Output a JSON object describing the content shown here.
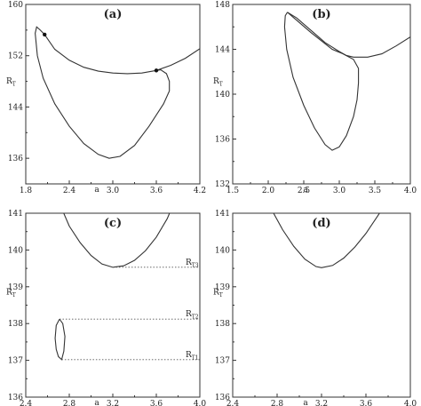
{
  "chart_data": [
    {
      "id": "a",
      "type": "line",
      "panel_label": "(a)",
      "xlabel": "a",
      "ylabel": "R",
      "ylabel_sub": "T",
      "xlim": [
        1.8,
        4.2
      ],
      "ylim": [
        132,
        160
      ],
      "xticks": [
        "1.8",
        "2.4",
        "3.0",
        "3.6",
        "4.2"
      ],
      "xtick_values": [
        1.8,
        2.4,
        3.0,
        3.6,
        4.2
      ],
      "yticks": [
        "136",
        "144",
        "152",
        "160"
      ],
      "ytick_values": [
        136,
        144,
        152,
        160
      ],
      "series": [
        {
          "x": [
            2.06,
            2.2,
            2.4,
            2.6,
            2.8,
            3.0,
            3.2,
            3.4,
            3.6,
            3.8,
            4.0,
            4.2
          ],
          "y": [
            155.3,
            153.0,
            151.3,
            150.2,
            149.6,
            149.3,
            149.2,
            149.3,
            149.7,
            150.5,
            151.6,
            153.1
          ]
        },
        {
          "x": [
            2.06,
            2.0,
            1.95,
            1.93,
            1.96,
            2.04,
            2.2,
            2.4,
            2.6,
            2.8,
            2.95,
            3.1,
            3.3,
            3.5,
            3.7,
            3.78,
            3.78,
            3.74,
            3.66,
            3.6
          ],
          "y": [
            155.3,
            156.0,
            156.5,
            155.5,
            152.0,
            148.5,
            144.5,
            141.0,
            138.3,
            136.6,
            136.0,
            136.3,
            138.0,
            141.0,
            144.5,
            146.5,
            148.0,
            149.2,
            149.8,
            149.7
          ]
        }
      ],
      "points": [
        {
          "x": 2.06,
          "y": 155.3
        },
        {
          "x": 3.6,
          "y": 149.7
        }
      ]
    },
    {
      "id": "b",
      "type": "line",
      "panel_label": "(b)",
      "xlabel": "a",
      "ylabel": "R",
      "ylabel_sub": "T",
      "xlim": [
        1.5,
        4.0
      ],
      "ylim": [
        132,
        148
      ],
      "xticks": [
        "1.5",
        "2.0",
        "2.5",
        "3.0",
        "3.5",
        "4.0"
      ],
      "xtick_values": [
        1.5,
        2.0,
        2.5,
        3.0,
        3.5,
        4.0
      ],
      "yticks": [
        "132",
        "136",
        "140",
        "144",
        "148"
      ],
      "ytick_values": [
        132,
        136,
        140,
        144,
        148
      ],
      "series": [
        {
          "x": [
            2.27,
            2.4,
            2.6,
            2.8,
            3.0,
            3.1,
            3.2,
            3.4,
            3.6,
            3.8,
            4.0
          ],
          "y": [
            147.3,
            146.8,
            145.7,
            144.6,
            143.8,
            143.45,
            143.3,
            143.3,
            143.6,
            144.3,
            145.1
          ]
        },
        {
          "x": [
            2.27,
            2.24,
            2.23,
            2.26,
            2.35,
            2.5,
            2.65,
            2.8,
            2.9,
            3.0,
            3.1,
            3.2,
            3.25,
            3.27,
            3.27,
            3.2,
            3.05,
            2.9,
            2.6,
            2.27
          ],
          "y": [
            147.3,
            147.0,
            146.0,
            144.0,
            141.5,
            139.0,
            137.0,
            135.5,
            135.0,
            135.3,
            136.3,
            138.0,
            139.5,
            141.0,
            142.3,
            143.1,
            143.6,
            144.0,
            145.5,
            147.3
          ]
        }
      ],
      "points": []
    },
    {
      "id": "c",
      "type": "line",
      "panel_label": "(c)",
      "xlabel": "a",
      "ylabel": "R",
      "ylabel_sub": "T",
      "xlim": [
        2.4,
        4.0
      ],
      "ylim": [
        136,
        141
      ],
      "xticks": [
        "2.4",
        "2.8",
        "3.2",
        "3.6",
        "4.0"
      ],
      "xtick_values": [
        2.4,
        2.8,
        3.2,
        3.6,
        4.0
      ],
      "yticks": [
        "136",
        "137",
        "138",
        "139",
        "140",
        "141"
      ],
      "ytick_values": [
        136,
        137,
        138,
        139,
        140,
        141
      ],
      "series": [
        {
          "x": [
            2.72,
            2.8,
            2.9,
            3.0,
            3.1,
            3.2,
            3.3,
            3.4,
            3.5,
            3.6,
            3.7,
            3.75
          ],
          "y": [
            141.2,
            140.65,
            140.2,
            139.85,
            139.62,
            139.53,
            139.57,
            139.72,
            139.98,
            140.35,
            140.85,
            141.2
          ]
        },
        {
          "x": [
            2.71,
            2.68,
            2.67,
            2.68,
            2.7,
            2.73,
            2.75,
            2.76,
            2.74,
            2.71
          ],
          "y": [
            138.12,
            137.95,
            137.6,
            137.3,
            137.1,
            137.02,
            137.25,
            137.65,
            138.0,
            138.12
          ]
        }
      ],
      "reference_lines": [
        {
          "y": 139.53,
          "x_from": 3.2,
          "x_to": 4.0,
          "label": "R",
          "label_sub": "T3"
        },
        {
          "y": 138.12,
          "x_from": 2.71,
          "x_to": 4.0,
          "label": "R",
          "label_sub": "T2"
        },
        {
          "y": 137.02,
          "x_from": 2.73,
          "x_to": 4.0,
          "label": "R",
          "label_sub": "T1"
        }
      ]
    },
    {
      "id": "d",
      "type": "line",
      "panel_label": "(d)",
      "xlabel": "a",
      "ylabel": "R",
      "ylabel_sub": "T",
      "xlim": [
        2.4,
        4.0
      ],
      "ylim": [
        136,
        141
      ],
      "xticks": [
        "2.4",
        "2.8",
        "3.2",
        "3.6",
        "4.0"
      ],
      "xtick_values": [
        2.4,
        2.8,
        3.2,
        3.6,
        4.0
      ],
      "yticks": [
        "136",
        "137",
        "138",
        "139",
        "140",
        "141"
      ],
      "ytick_values": [
        136,
        137,
        138,
        139,
        140,
        141
      ],
      "series": [
        {
          "x": [
            2.75,
            2.85,
            2.95,
            3.05,
            3.15,
            3.2,
            3.3,
            3.4,
            3.5,
            3.6,
            3.7,
            3.8
          ],
          "y": [
            141.1,
            140.55,
            140.1,
            139.75,
            139.55,
            139.52,
            139.58,
            139.78,
            140.08,
            140.45,
            140.9,
            141.35
          ]
        }
      ],
      "reference_lines": []
    }
  ]
}
